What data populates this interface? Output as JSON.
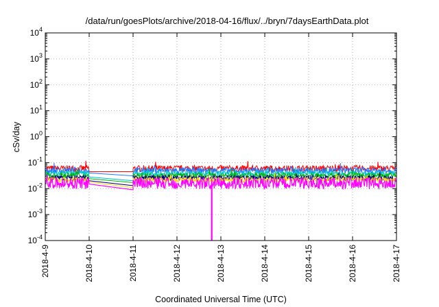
{
  "chart_data": {
    "type": "line",
    "title": "/data/run/goesPlots/archive/2018-04-16/flux/../bryn/7daysEarthData.plot",
    "xlabel": "Coordinated Universal Time (UTC)",
    "ylabel": "cSv/day",
    "yscale": "log",
    "ylim": [
      0.0001,
      10000
    ],
    "xlim": [
      "2018-04-09",
      "2018-04-17"
    ],
    "x_ticks": [
      "2018-4-9",
      "2018-4-10",
      "2018-4-11",
      "2018-4-12",
      "2018-4-13",
      "2018-4-14",
      "2018-4-15",
      "2018-4-16",
      "2018-4-17"
    ],
    "y_ticks": [
      {
        "base": "10",
        "exp": "-4"
      },
      {
        "base": "10",
        "exp": "-3"
      },
      {
        "base": "10",
        "exp": "-2"
      },
      {
        "base": "10",
        "exp": "-1"
      },
      {
        "base": "10",
        "exp": "0"
      },
      {
        "base": "10",
        "exp": "1"
      },
      {
        "base": "10",
        "exp": "2"
      },
      {
        "base": "10",
        "exp": "3"
      },
      {
        "base": "10",
        "exp": "4"
      }
    ],
    "grid": true,
    "gap": {
      "start": "2018-04-10",
      "end": "2018-04-11"
    },
    "dropout": {
      "date": "2018-04-12T19:00",
      "value": 0.0001
    },
    "series": [
      {
        "color": "#ff0000",
        "level": 0.06,
        "noise": 0.12,
        "gap_start": 0.045,
        "gap_end": 0.045
      },
      {
        "color": "#1e78ff",
        "level": 0.05,
        "noise": 0.12,
        "gap_start": 0.04,
        "gap_end": 0.031
      },
      {
        "color": "#00c8c8",
        "level": 0.038,
        "noise": 0.1,
        "gap_start": 0.028,
        "gap_end": 0.02
      },
      {
        "color": "#00b400",
        "level": 0.032,
        "noise": 0.1,
        "gap_start": 0.024,
        "gap_end": 0.017
      },
      {
        "color": "#000080",
        "level": 0.026,
        "noise": 0.1,
        "gap_start": 0.02,
        "gap_end": 0.013
      },
      {
        "color": "#ffd700",
        "level": 0.022,
        "noise": 0.1,
        "gap_start": 0.018,
        "gap_end": 0.011
      },
      {
        "color": "#ff00ff",
        "level": 0.016,
        "noise": 0.22,
        "gap_start": 0.015,
        "gap_end": 0.009
      }
    ]
  }
}
